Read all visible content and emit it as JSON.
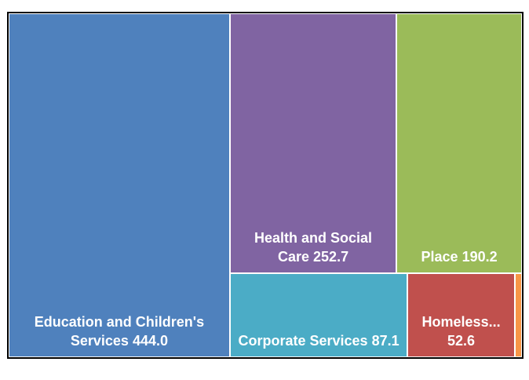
{
  "chart_data": {
    "type": "treemap",
    "series": [
      {
        "name": "Education and Children's Services",
        "color": "#4f81bd",
        "values": [
          444.0
        ],
        "value_labels": [
          "444.0"
        ]
      },
      {
        "name": "Health and Social Care",
        "color": "#8064a2",
        "values": [
          252.7
        ],
        "value_labels": [
          "252.7"
        ]
      },
      {
        "name": "Place",
        "color": "#9bbb59",
        "values": [
          190.2
        ],
        "value_labels": [
          "190.2"
        ]
      },
      {
        "name": "Corporate Services",
        "color": "#4bacc6",
        "values": [
          87.1
        ],
        "value_labels": [
          "87.1"
        ]
      },
      {
        "name": "Homeless...",
        "color": "#c0504d",
        "values": [
          52.6
        ],
        "value_labels": [
          "52.6"
        ]
      },
      {
        "name": null,
        "color": "#f79646",
        "values": [
          3.5
        ],
        "value_labels": [
          null
        ]
      }
    ]
  }
}
